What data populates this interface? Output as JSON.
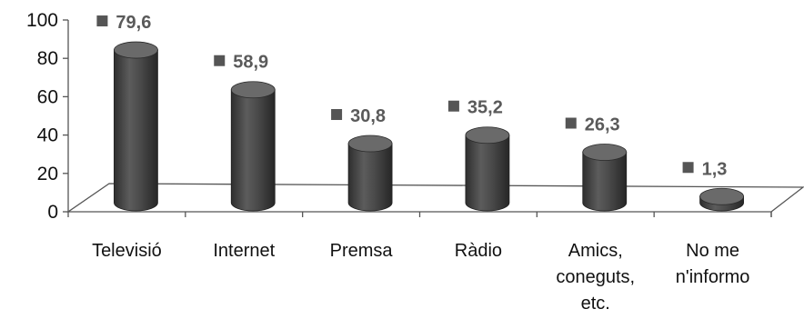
{
  "chart_data": {
    "type": "bar",
    "style": "3d-cylinder",
    "categories": [
      "Televisió",
      "Internet",
      "Premsa",
      "Ràdio",
      "Amics, coneguts, etc.",
      "No me n'informo"
    ],
    "category_lines": [
      [
        "Televisió"
      ],
      [
        "Internet"
      ],
      [
        "Premsa"
      ],
      [
        "Ràdio"
      ],
      [
        "Amics,",
        "coneguts,",
        "etc."
      ],
      [
        "No me",
        "n'informo"
      ]
    ],
    "values": [
      79.6,
      58.9,
      30.8,
      35.2,
      26.3,
      1.3
    ],
    "value_labels": [
      "79,6",
      "58,9",
      "30,8",
      "35,2",
      "26,3",
      "1,3"
    ],
    "title": "",
    "xlabel": "",
    "ylabel": "",
    "ylim": [
      0,
      100
    ],
    "yticks": [
      "0",
      "20",
      "40",
      "60",
      "80",
      "100"
    ],
    "grid": false,
    "legend": "none",
    "colors": {
      "bar_body": "#4a4a4a",
      "bar_top": "#6a6a6a",
      "marker": "#555555",
      "label": "#5a5a5a",
      "axis": "#555555"
    }
  }
}
